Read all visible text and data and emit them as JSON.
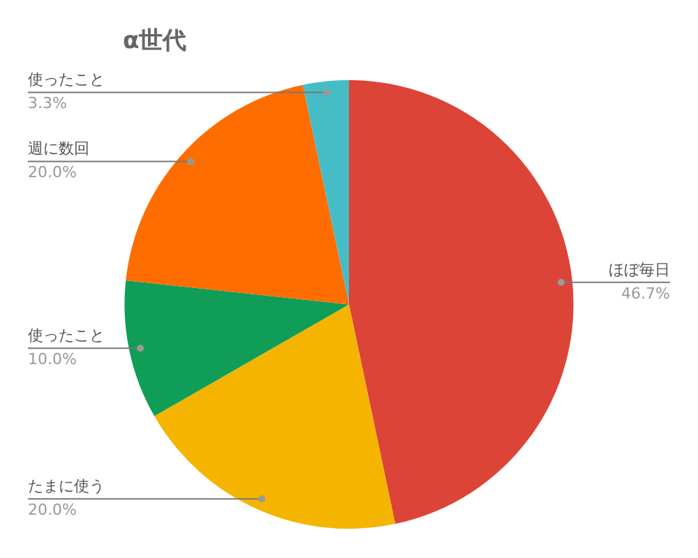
{
  "chart_data": {
    "type": "pie",
    "title": "α世代",
    "categories": [
      "ほぼ毎日",
      "たまに使う",
      "使ったこと",
      "週に数回",
      "使ったこと"
    ],
    "values": [
      46.7,
      20.0,
      10.0,
      20.0,
      3.3
    ],
    "value_labels": [
      "46.7%",
      "20.0%",
      "10.0%",
      "20.0%",
      "3.3%"
    ],
    "colors": [
      "#db4437",
      "#f4b400",
      "#0f9d58",
      "#ff6d01",
      "#46bdc6"
    ],
    "legend": false
  }
}
